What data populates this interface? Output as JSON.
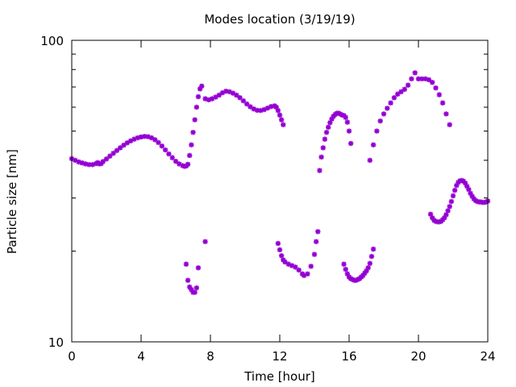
{
  "chart_data": {
    "type": "scatter",
    "title": "Modes location (3/19/19)",
    "xlabel": "Time [hour]",
    "ylabel": "Particle size [nm]",
    "xlim": [
      0,
      24
    ],
    "ylim": [
      10,
      100
    ],
    "yscale": "log",
    "grid": false,
    "legend": false,
    "marker_color": "#9400d3",
    "marker": "asterisk",
    "x_ticks": [
      {
        "value": 0,
        "label": "0"
      },
      {
        "value": 4,
        "label": "4"
      },
      {
        "value": 8,
        "label": "8"
      },
      {
        "value": 12,
        "label": "12"
      },
      {
        "value": 16,
        "label": "16"
      },
      {
        "value": 20,
        "label": "20"
      },
      {
        "value": 24,
        "label": "24"
      }
    ],
    "y_ticks": [
      {
        "value": 10,
        "label": "10"
      },
      {
        "value": 100,
        "label": "100"
      }
    ],
    "series": [
      {
        "points": [
          [
            0.0,
            40.5
          ],
          [
            0.2,
            40.0
          ],
          [
            0.4,
            39.5
          ],
          [
            0.6,
            39.2
          ],
          [
            0.8,
            38.9
          ],
          [
            1.0,
            38.7
          ],
          [
            1.2,
            38.7
          ],
          [
            1.4,
            39.0
          ],
          [
            1.5,
            39.3
          ],
          [
            1.6,
            38.9
          ],
          [
            1.7,
            39.0
          ],
          [
            1.8,
            39.6
          ],
          [
            2.0,
            40.4
          ],
          [
            2.2,
            41.3
          ],
          [
            2.4,
            42.2
          ],
          [
            2.6,
            43.1
          ],
          [
            2.8,
            44.0
          ],
          [
            3.0,
            44.9
          ],
          [
            3.2,
            45.7
          ],
          [
            3.4,
            46.4
          ],
          [
            3.6,
            47.0
          ],
          [
            3.8,
            47.5
          ],
          [
            4.0,
            47.8
          ],
          [
            4.2,
            48.0
          ],
          [
            4.4,
            47.9
          ],
          [
            4.6,
            47.5
          ],
          [
            4.8,
            46.8
          ],
          [
            5.0,
            45.8
          ],
          [
            5.2,
            44.6
          ],
          [
            5.4,
            43.3
          ],
          [
            5.6,
            42.0
          ],
          [
            5.8,
            40.8
          ],
          [
            6.0,
            39.7
          ],
          [
            6.2,
            38.9
          ],
          [
            6.4,
            38.4
          ],
          [
            6.5,
            38.2
          ],
          [
            6.6,
            38.3
          ],
          [
            6.7,
            38.8
          ],
          [
            6.8,
            41.5
          ],
          [
            6.9,
            45.0
          ],
          [
            7.0,
            49.5
          ],
          [
            7.1,
            54.5
          ],
          [
            7.2,
            60.0
          ],
          [
            7.3,
            65.0
          ],
          [
            7.4,
            69.0
          ],
          [
            7.5,
            70.5
          ],
          [
            7.7,
            64.0
          ],
          [
            7.9,
            63.5
          ],
          [
            8.1,
            64.0
          ],
          [
            8.3,
            64.8
          ],
          [
            8.5,
            65.8
          ],
          [
            8.7,
            67.0
          ],
          [
            8.9,
            67.8
          ],
          [
            9.1,
            67.5
          ],
          [
            9.3,
            66.8
          ],
          [
            9.5,
            65.8
          ],
          [
            9.7,
            64.5
          ],
          [
            9.9,
            63.0
          ],
          [
            10.1,
            61.5
          ],
          [
            10.3,
            60.2
          ],
          [
            10.5,
            59.2
          ],
          [
            10.7,
            58.6
          ],
          [
            10.9,
            58.5
          ],
          [
            11.1,
            58.9
          ],
          [
            11.3,
            59.6
          ],
          [
            11.5,
            60.3
          ],
          [
            11.7,
            60.6
          ],
          [
            11.8,
            60.0
          ],
          [
            11.9,
            58.5
          ],
          [
            12.0,
            56.5
          ],
          [
            12.1,
            54.5
          ],
          [
            12.2,
            52.5
          ],
          [
            6.6,
            18.1
          ],
          [
            6.7,
            16.0
          ],
          [
            6.8,
            15.2
          ],
          [
            6.9,
            14.9
          ],
          [
            7.0,
            14.6
          ],
          [
            7.1,
            14.6
          ],
          [
            7.2,
            15.1
          ],
          [
            7.3,
            17.6
          ],
          [
            7.7,
            21.5
          ],
          [
            11.9,
            21.2
          ],
          [
            12.0,
            20.2
          ],
          [
            12.1,
            19.3
          ],
          [
            12.2,
            18.7
          ],
          [
            12.3,
            18.4
          ],
          [
            12.5,
            18.1
          ],
          [
            12.7,
            17.9
          ],
          [
            12.9,
            17.7
          ],
          [
            13.1,
            17.3
          ],
          [
            13.3,
            16.8
          ],
          [
            13.4,
            16.6
          ],
          [
            13.6,
            16.8
          ],
          [
            13.8,
            17.8
          ],
          [
            14.0,
            19.5
          ],
          [
            14.1,
            21.5
          ],
          [
            14.2,
            23.2
          ],
          [
            14.3,
            37.0
          ],
          [
            14.4,
            41.0
          ],
          [
            14.5,
            44.0
          ],
          [
            14.6,
            47.0
          ],
          [
            14.7,
            49.5
          ],
          [
            14.8,
            51.5
          ],
          [
            14.9,
            53.3
          ],
          [
            15.0,
            54.8
          ],
          [
            15.1,
            56.0
          ],
          [
            15.2,
            56.8
          ],
          [
            15.3,
            57.3
          ],
          [
            15.4,
            57.3
          ],
          [
            15.5,
            56.9
          ],
          [
            15.6,
            56.5
          ],
          [
            15.7,
            56.3
          ],
          [
            15.8,
            55.5
          ],
          [
            15.9,
            53.5
          ],
          [
            16.0,
            50.0
          ],
          [
            16.1,
            45.5
          ],
          [
            15.7,
            18.1
          ],
          [
            15.8,
            17.4
          ],
          [
            15.9,
            16.8
          ],
          [
            16.0,
            16.4
          ],
          [
            16.1,
            16.2
          ],
          [
            16.2,
            16.1
          ],
          [
            16.3,
            16.0
          ],
          [
            16.4,
            16.0
          ],
          [
            16.5,
            16.1
          ],
          [
            16.6,
            16.2
          ],
          [
            16.7,
            16.4
          ],
          [
            16.8,
            16.6
          ],
          [
            16.9,
            16.9
          ],
          [
            17.0,
            17.2
          ],
          [
            17.1,
            17.6
          ],
          [
            17.2,
            18.2
          ],
          [
            17.3,
            19.2
          ],
          [
            17.4,
            20.3
          ],
          [
            17.2,
            40.0
          ],
          [
            17.4,
            45.0
          ],
          [
            17.6,
            50.0
          ],
          [
            17.8,
            54.0
          ],
          [
            18.0,
            57.0
          ],
          [
            18.2,
            59.5
          ],
          [
            18.4,
            62.0
          ],
          [
            18.6,
            64.5
          ],
          [
            18.8,
            66.3
          ],
          [
            19.0,
            67.5
          ],
          [
            19.2,
            68.8
          ],
          [
            19.4,
            71.0
          ],
          [
            19.6,
            74.5
          ],
          [
            19.8,
            78.0
          ],
          [
            20.0,
            74.5
          ],
          [
            20.2,
            74.5
          ],
          [
            20.4,
            74.5
          ],
          [
            20.6,
            74.0
          ],
          [
            20.8,
            72.5
          ],
          [
            21.0,
            69.5
          ],
          [
            21.2,
            66.0
          ],
          [
            21.4,
            62.0
          ],
          [
            21.6,
            57.0
          ],
          [
            21.8,
            52.5
          ],
          [
            20.7,
            26.5
          ],
          [
            20.8,
            25.8
          ],
          [
            20.9,
            25.3
          ],
          [
            21.0,
            25.1
          ],
          [
            21.1,
            25.0
          ],
          [
            21.2,
            25.0
          ],
          [
            21.3,
            25.1
          ],
          [
            21.4,
            25.4
          ],
          [
            21.5,
            25.8
          ],
          [
            21.6,
            26.4
          ],
          [
            21.7,
            27.2
          ],
          [
            21.8,
            28.1
          ],
          [
            21.9,
            29.2
          ],
          [
            22.0,
            30.5
          ],
          [
            22.1,
            31.8
          ],
          [
            22.2,
            33.0
          ],
          [
            22.3,
            33.8
          ],
          [
            22.4,
            34.2
          ],
          [
            22.5,
            34.3
          ],
          [
            22.6,
            34.1
          ],
          [
            22.7,
            33.6
          ],
          [
            22.8,
            32.8
          ],
          [
            22.9,
            32.0
          ],
          [
            23.0,
            31.1
          ],
          [
            23.1,
            30.4
          ],
          [
            23.2,
            29.8
          ],
          [
            23.3,
            29.4
          ],
          [
            23.4,
            29.2
          ],
          [
            23.5,
            29.1
          ],
          [
            23.6,
            29.1
          ],
          [
            23.7,
            29.0
          ],
          [
            23.8,
            29.0
          ],
          [
            23.9,
            29.1
          ],
          [
            24.0,
            29.3
          ]
        ]
      }
    ]
  }
}
